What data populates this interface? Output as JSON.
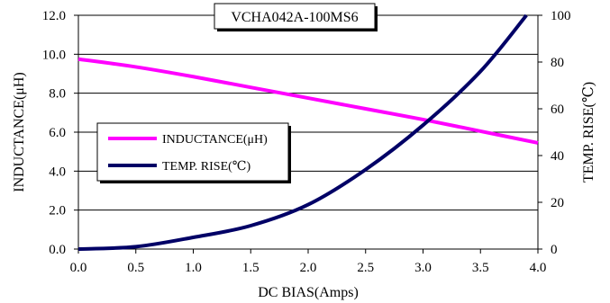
{
  "chart_data": {
    "type": "line",
    "title": "VCHA042A-100MS6",
    "xlabel": "DC BIAS(Amps)",
    "ylabel_left": "INDUCTANCE(μH)",
    "ylabel_right": "TEMP. RISE(℃)",
    "xlim": [
      0,
      4.0
    ],
    "ylim_left": [
      0,
      12.0
    ],
    "ylim_right": [
      0,
      100
    ],
    "x_ticks": [
      "0.0",
      "0.5",
      "1.0",
      "1.5",
      "2.0",
      "2.5",
      "3.0",
      "3.5",
      "4.0"
    ],
    "y_left_ticks": [
      "0.0",
      "2.0",
      "4.0",
      "6.0",
      "8.0",
      "10.0",
      "12.0"
    ],
    "y_right_ticks": [
      "0",
      "20",
      "40",
      "60",
      "80",
      "100"
    ],
    "grid": "horizontal",
    "legend_position": "left-middle",
    "series": [
      {
        "name": "INDUCTANCE(μH)",
        "axis": "left",
        "color": "#ff00ff",
        "x": [
          0.0,
          0.5,
          1.0,
          1.5,
          2.0,
          2.5,
          3.0,
          3.5,
          4.0
        ],
        "y": [
          9.75,
          9.35,
          8.85,
          8.3,
          7.75,
          7.2,
          6.65,
          6.05,
          5.45
        ]
      },
      {
        "name": "TEMP. RISE(℃)",
        "axis": "right",
        "color": "#000066",
        "x": [
          0.0,
          0.5,
          1.0,
          1.5,
          2.0,
          2.5,
          3.0,
          3.5,
          3.9
        ],
        "y": [
          0,
          1,
          5,
          10,
          19,
          34,
          53,
          76,
          100
        ]
      }
    ]
  }
}
